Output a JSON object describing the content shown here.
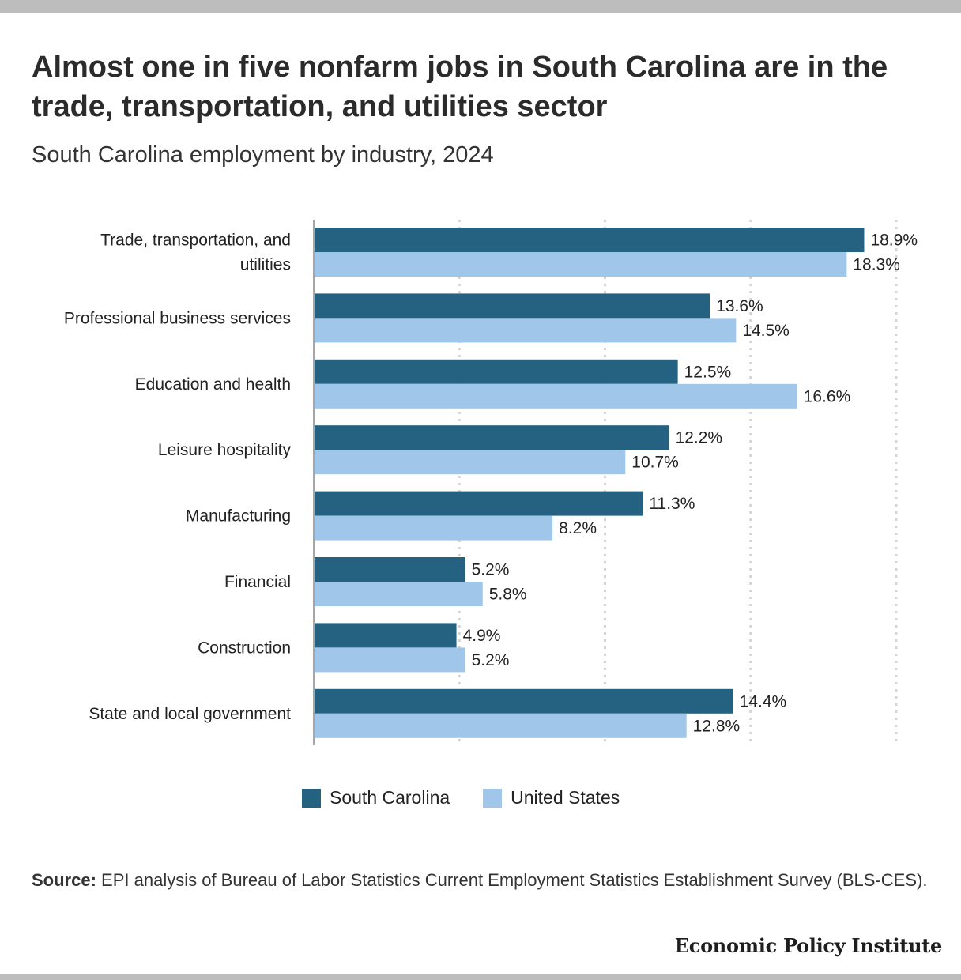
{
  "title": "Almost one in five nonfarm jobs in South Carolina are in the trade, transportation, and utilities sector",
  "subtitle": "South Carolina employment by industry, 2024",
  "source": {
    "label": "Source:",
    "text": "EPI analysis of Bureau of Labor Statistics Current Employment Statistics Establishment Survey (BLS-CES)."
  },
  "brand": "Economic Policy Institute",
  "legend": {
    "south_carolina": "South Carolina",
    "united_states": "United States"
  },
  "colors": {
    "south_carolina": "#256282",
    "united_states": "#a0c6e9",
    "grid": "#d4d4d4",
    "axis": "#a6a6a6"
  },
  "chart_data": {
    "type": "bar",
    "orientation": "horizontal",
    "categories": [
      "Trade, transportation, and utilities",
      "Professional business services",
      "Education and health",
      "Leisure hospitality",
      "Manufacturing",
      "Financial",
      "Construction",
      "State and local government"
    ],
    "series": [
      {
        "name": "South Carolina",
        "values": [
          18.9,
          13.6,
          12.5,
          12.2,
          11.3,
          5.2,
          4.9,
          14.4
        ],
        "labels": [
          "18.9%",
          "13.6%",
          "12.5%",
          "12.2%",
          "11.3%",
          "5.2%",
          "4.9%",
          "14.4%"
        ]
      },
      {
        "name": "United States",
        "values": [
          18.3,
          14.5,
          16.6,
          10.7,
          8.2,
          5.8,
          5.2,
          12.8
        ],
        "labels": [
          "18.3%",
          "14.5%",
          "16.6%",
          "10.7%",
          "8.2%",
          "5.8%",
          "5.2%",
          "12.8%"
        ]
      }
    ],
    "xlim": [
      0,
      20
    ],
    "grid_values": [
      5,
      10,
      15,
      20
    ],
    "grid": true,
    "legend_position": "bottom"
  }
}
